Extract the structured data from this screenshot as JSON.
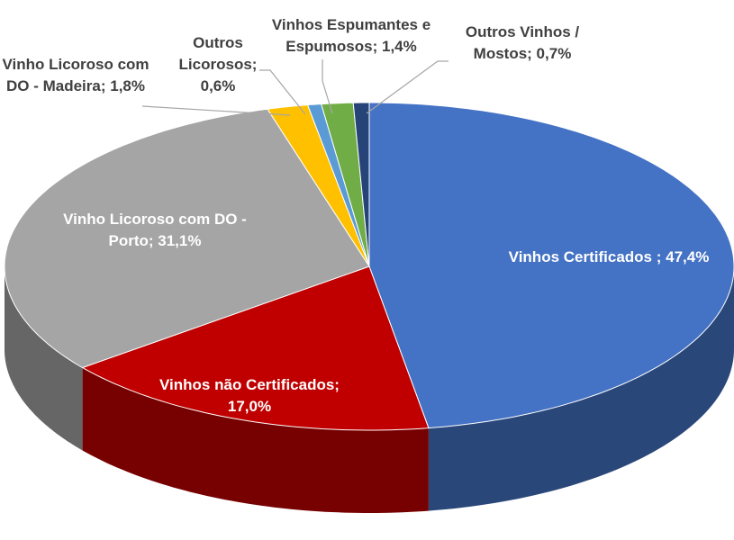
{
  "chart_data": {
    "type": "pie3d",
    "labels": [
      "Vinhos Certificados ; 47,4%",
      "Vinhos não Certificados; 17,0%",
      "Vinho Licoroso com DO - Porto; 31,1%",
      "Vinho Licoroso com DO - Madeira; 1,8%",
      "Outros Licorosos; 0,6%",
      "Vinhos Espumantes e Espumosos; 1,4%",
      "Outros Vinhos / Mostos; 0,7%"
    ],
    "values": [
      47.4,
      17.0,
      31.1,
      1.8,
      0.6,
      1.4,
      0.7
    ],
    "colors": [
      "#4472c4",
      "#c00000",
      "#a5a5a5",
      "#ffc000",
      "#5b9bd5",
      "#70ad47",
      "#264478"
    ]
  }
}
